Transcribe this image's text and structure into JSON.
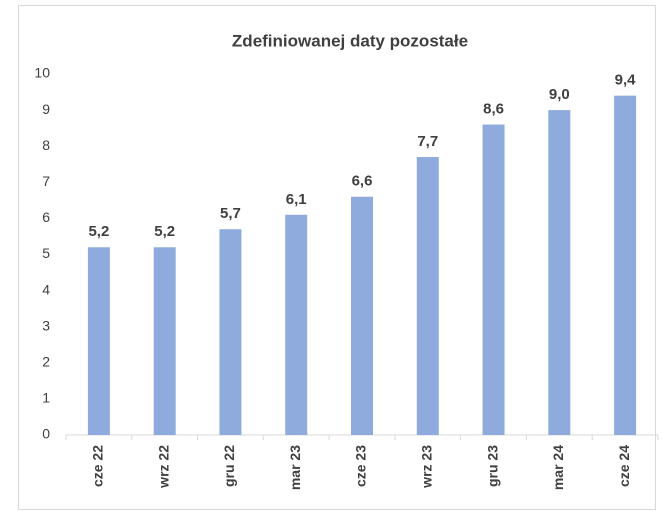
{
  "chart_data": {
    "type": "bar",
    "title": "Zdefiniowanej daty pozostałe",
    "categories": [
      "cze 22",
      "wrz 22",
      "gru 22",
      "mar 23",
      "cze 23",
      "wrz 23",
      "gru 23",
      "mar 24",
      "cze 24"
    ],
    "values": [
      5.2,
      5.2,
      5.7,
      6.1,
      6.6,
      7.7,
      8.6,
      9.0,
      9.4
    ],
    "value_labels": [
      "5,2",
      "5,2",
      "5,7",
      "6,1",
      "6,6",
      "7,7",
      "8,6",
      "9,0",
      "9,4"
    ],
    "color": "#8faadc",
    "ylim": [
      0,
      10
    ],
    "yticks": [
      0,
      1,
      2,
      3,
      4,
      5,
      6,
      7,
      8,
      9,
      10
    ],
    "grid": false
  }
}
